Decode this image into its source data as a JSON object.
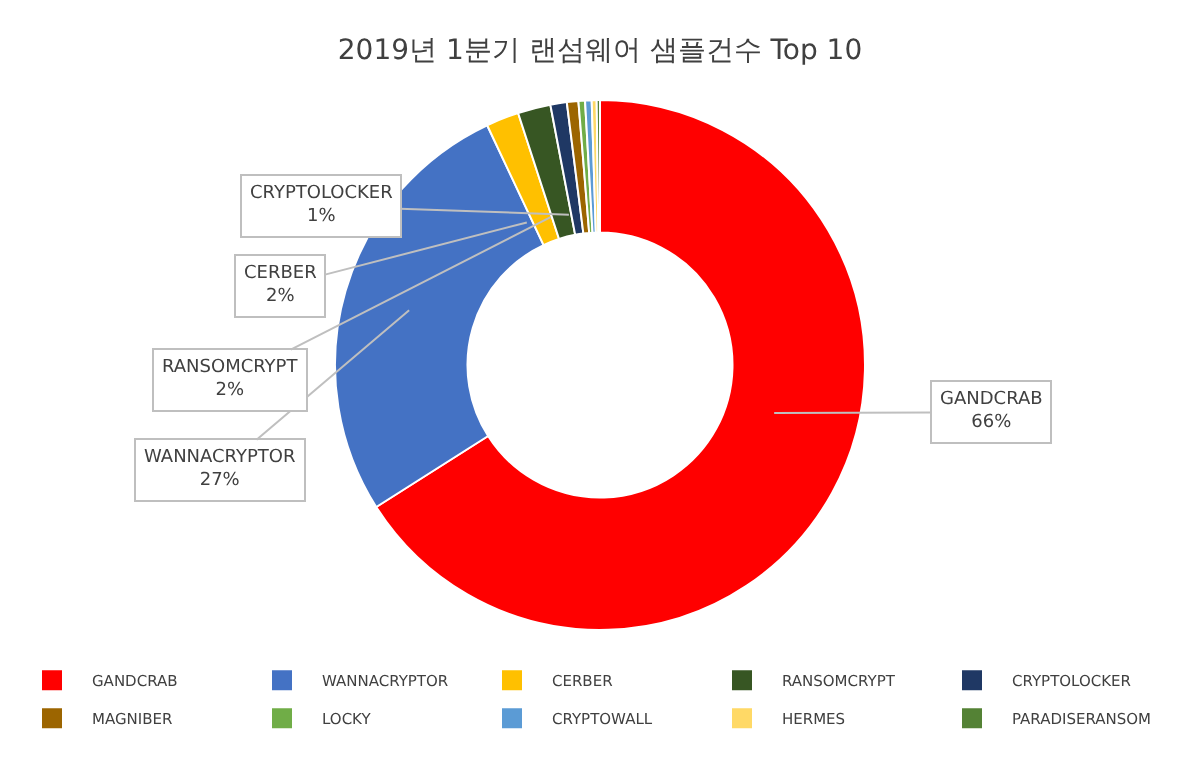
{
  "chart_data": {
    "type": "donut",
    "title": "2019년 1분기 랜섬웨어 샘플건수 Top 10",
    "categories": [
      "GANDCRAB",
      "WANNACRYPTOR",
      "CERBER",
      "RANSOMCRYPT",
      "CRYPTOLOCKER",
      "MAGNIBER",
      "LOCKY",
      "CRYPTOWALL",
      "HERMES",
      "PARADISERANSOM"
    ],
    "values": [
      66,
      27,
      2,
      2,
      1,
      0.7,
      0.4,
      0.4,
      0.3,
      0.2
    ],
    "value_labels": [
      "66%",
      "27%",
      "2%",
      "2%",
      "1%",
      null,
      null,
      null,
      null,
      null
    ],
    "colors": [
      "#ff0000",
      "#4472c4",
      "#ffc000",
      "#375623",
      "#1f3864",
      "#9c6500",
      "#70ad47",
      "#5b9bd5",
      "#ffd966",
      "#548235"
    ],
    "legend": "bottom"
  }
}
